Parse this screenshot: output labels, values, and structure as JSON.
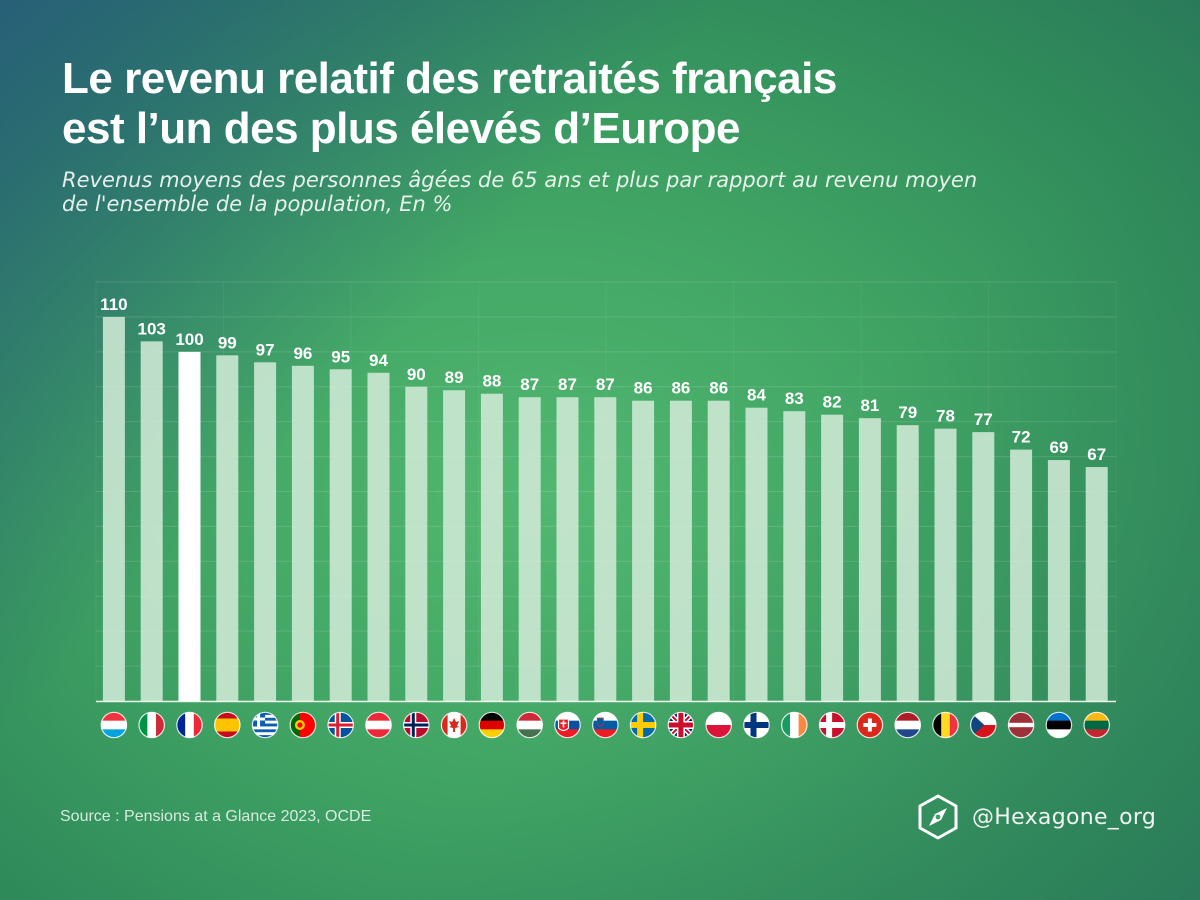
{
  "header": {
    "title_line1": "Le revenu relatif des retraités français",
    "title_line2": "est l’un des plus élevés d’Europe",
    "subtitle_line1": "Revenus moyens des personnes âgées de 65 ans et plus par rapport au revenu moyen",
    "subtitle_line2": "de l'ensemble de la population, En %"
  },
  "chart_data": {
    "type": "bar",
    "categories": [
      "luxembourg",
      "italy",
      "france",
      "spain",
      "greece",
      "portugal",
      "iceland",
      "austria",
      "norway",
      "canada",
      "germany",
      "hungary",
      "slovakia",
      "slovenia",
      "sweden",
      "united-kingdom",
      "poland",
      "finland",
      "ireland",
      "denmark",
      "switzerland",
      "netherlands",
      "belgium",
      "czechia",
      "latvia",
      "estonia",
      "lithuania"
    ],
    "values": [
      110,
      103,
      100,
      99,
      97,
      96,
      95,
      94,
      90,
      89,
      88,
      87,
      87,
      87,
      86,
      86,
      86,
      84,
      83,
      82,
      81,
      79,
      78,
      77,
      72,
      69,
      67
    ],
    "highlight": "france",
    "ylim": [
      0,
      120
    ],
    "grid": true,
    "colors": {
      "bar": "#cfe9d6",
      "highlight": "#ffffff"
    }
  },
  "footer": {
    "source": "Source : Pensions at a Glance 2023, OCDE",
    "handle": "@Hexagone_org"
  }
}
